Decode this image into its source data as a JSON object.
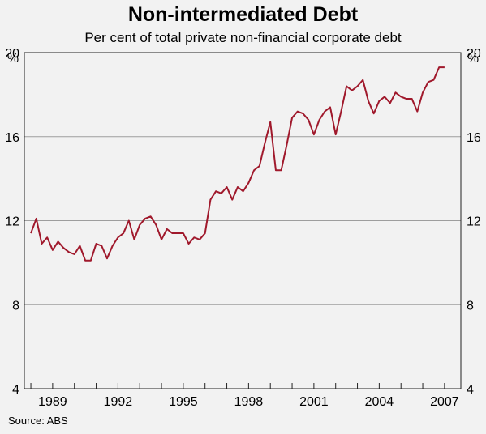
{
  "chart_data": {
    "type": "line",
    "title": "Non-intermediated Debt",
    "subtitle": "Per cent of total private non-financial corporate debt",
    "ylabel": "%",
    "ylim": [
      4,
      20
    ],
    "y_ticks": [
      4,
      8,
      12,
      16,
      20
    ],
    "y_tick_labels": [
      "4",
      "8",
      "12",
      "16",
      "20"
    ],
    "x_ticks": [
      1989,
      1992,
      1995,
      1998,
      2001,
      2004,
      2007
    ],
    "x_tick_labels": [
      "1989",
      "1992",
      "1995",
      "1998",
      "2001",
      "2004",
      "2007"
    ],
    "xlim": [
      1987.7,
      2007.75
    ],
    "grid": true,
    "series": [
      {
        "color": "#a0192c",
        "x": [
          1988.0,
          1988.25,
          1988.5,
          1988.75,
          1989.0,
          1989.25,
          1989.5,
          1989.75,
          1990.0,
          1990.25,
          1990.5,
          1990.75,
          1991.0,
          1991.25,
          1991.5,
          1991.75,
          1992.0,
          1992.25,
          1992.5,
          1992.75,
          1993.0,
          1993.25,
          1993.5,
          1993.75,
          1994.0,
          1994.25,
          1994.5,
          1994.75,
          1995.0,
          1995.25,
          1995.5,
          1995.75,
          1996.0,
          1996.25,
          1996.5,
          1996.75,
          1997.0,
          1997.25,
          1997.5,
          1997.75,
          1998.0,
          1998.25,
          1998.5,
          1998.75,
          1999.0,
          1999.25,
          1999.5,
          1999.75,
          2000.0,
          2000.25,
          2000.5,
          2000.75,
          2001.0,
          2001.25,
          2001.5,
          2001.75,
          2002.0,
          2002.25,
          2002.5,
          2002.75,
          2003.0,
          2003.25,
          2003.5,
          2003.75,
          2004.0,
          2004.25,
          2004.5,
          2004.75,
          2005.0,
          2005.25,
          2005.5,
          2005.75,
          2006.0,
          2006.25,
          2006.5,
          2006.75,
          2007.0
        ],
        "values": [
          11.4,
          12.1,
          10.9,
          11.2,
          10.6,
          11.0,
          10.7,
          10.5,
          10.4,
          10.8,
          10.1,
          10.1,
          10.9,
          10.8,
          10.2,
          10.8,
          11.2,
          11.4,
          12.0,
          11.1,
          11.8,
          12.1,
          12.2,
          11.8,
          11.1,
          11.6,
          11.4,
          11.4,
          11.4,
          10.9,
          11.2,
          11.1,
          11.4,
          13.0,
          13.4,
          13.3,
          13.6,
          13.0,
          13.6,
          13.4,
          13.8,
          14.4,
          14.6,
          15.7,
          16.7,
          14.4,
          14.4,
          15.6,
          16.9,
          17.2,
          17.1,
          16.8,
          16.1,
          16.8,
          17.2,
          17.4,
          16.1,
          17.2,
          18.4,
          18.2,
          18.4,
          18.7,
          17.7,
          17.1,
          17.7,
          17.9,
          17.6,
          18.1,
          17.9,
          17.8,
          17.8,
          17.2,
          18.1,
          18.6,
          18.7,
          19.3,
          19.3
        ]
      }
    ]
  },
  "source": "Source: ABS"
}
